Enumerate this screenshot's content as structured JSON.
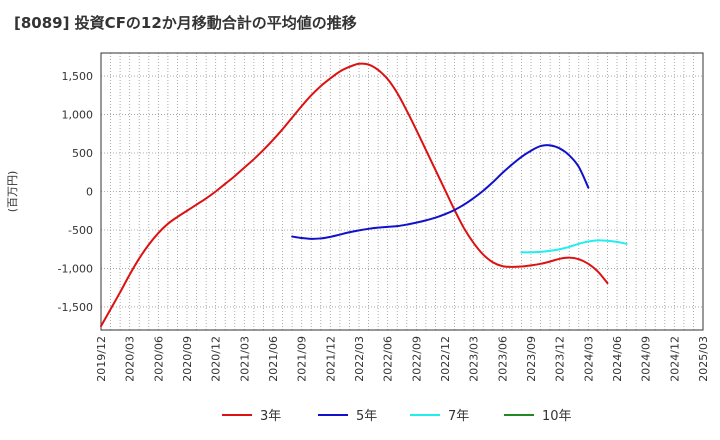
{
  "chart_data": {
    "type": "line",
    "title": "[8089]  投資CFの12か月移動合計の平均値の推移",
    "ylabel": "(百万円)",
    "xlabel": "",
    "ylim": [
      -1800,
      1800
    ],
    "yticks": [
      -1500,
      -1000,
      -500,
      0,
      500,
      1000,
      1500
    ],
    "ytick_labels": [
      "-1,500",
      "-1,000",
      "-500",
      "0",
      "500",
      "1,000",
      "1,500"
    ],
    "x_range": [
      "2019-12",
      "2025-03"
    ],
    "xtick_labels": [
      "2019/12",
      "2020/03",
      "2020/06",
      "2020/09",
      "2020/12",
      "2021/03",
      "2021/06",
      "2021/09",
      "2021/12",
      "2022/03",
      "2022/06",
      "2022/09",
      "2022/12",
      "2023/03",
      "2023/06",
      "2023/09",
      "2023/12",
      "2024/03",
      "2024/06",
      "2024/09",
      "2024/12",
      "2025/03"
    ],
    "grid": true,
    "legend_position": "bottom",
    "series": [
      {
        "name": "3年",
        "color": "#dd1111",
        "points": [
          [
            "2019-12",
            -1750
          ],
          [
            "2020-01",
            -1530
          ],
          [
            "2020-02",
            -1310
          ],
          [
            "2020-03",
            -1080
          ],
          [
            "2020-04",
            -870
          ],
          [
            "2020-05",
            -690
          ],
          [
            "2020-06",
            -540
          ],
          [
            "2020-07",
            -420
          ],
          [
            "2020-08",
            -330
          ],
          [
            "2020-09",
            -250
          ],
          [
            "2020-10",
            -170
          ],
          [
            "2020-11",
            -90
          ],
          [
            "2020-12",
            0
          ],
          [
            "2021-01",
            100
          ],
          [
            "2021-02",
            200
          ],
          [
            "2021-03",
            310
          ],
          [
            "2021-04",
            420
          ],
          [
            "2021-05",
            540
          ],
          [
            "2021-06",
            670
          ],
          [
            "2021-07",
            810
          ],
          [
            "2021-08",
            960
          ],
          [
            "2021-09",
            1110
          ],
          [
            "2021-10",
            1250
          ],
          [
            "2021-11",
            1370
          ],
          [
            "2021-12",
            1470
          ],
          [
            "2022-01",
            1560
          ],
          [
            "2022-02",
            1620
          ],
          [
            "2022-03",
            1660
          ],
          [
            "2022-04",
            1650
          ],
          [
            "2022-05",
            1580
          ],
          [
            "2022-06",
            1460
          ],
          [
            "2022-07",
            1280
          ],
          [
            "2022-08",
            1050
          ],
          [
            "2022-09",
            800
          ],
          [
            "2022-10",
            540
          ],
          [
            "2022-11",
            280
          ],
          [
            "2022-12",
            20
          ],
          [
            "2023-01",
            -240
          ],
          [
            "2023-02",
            -480
          ],
          [
            "2023-03",
            -670
          ],
          [
            "2023-04",
            -820
          ],
          [
            "2023-05",
            -920
          ],
          [
            "2023-06",
            -970
          ],
          [
            "2023-07",
            -980
          ],
          [
            "2023-08",
            -975
          ],
          [
            "2023-09",
            -960
          ],
          [
            "2023-10",
            -940
          ],
          [
            "2023-11",
            -910
          ],
          [
            "2023-12",
            -875
          ],
          [
            "2024-01",
            -860
          ],
          [
            "2024-02",
            -880
          ],
          [
            "2024-03",
            -940
          ],
          [
            "2024-04",
            -1040
          ],
          [
            "2024-05",
            -1190
          ]
        ]
      },
      {
        "name": "5年",
        "color": "#1111cc",
        "points": [
          [
            "2021-08",
            -585
          ],
          [
            "2021-09",
            -605
          ],
          [
            "2021-10",
            -615
          ],
          [
            "2021-11",
            -610
          ],
          [
            "2021-12",
            -590
          ],
          [
            "2022-01",
            -560
          ],
          [
            "2022-02",
            -530
          ],
          [
            "2022-03",
            -505
          ],
          [
            "2022-04",
            -485
          ],
          [
            "2022-05",
            -470
          ],
          [
            "2022-06",
            -460
          ],
          [
            "2022-07",
            -450
          ],
          [
            "2022-08",
            -430
          ],
          [
            "2022-09",
            -405
          ],
          [
            "2022-10",
            -375
          ],
          [
            "2022-11",
            -340
          ],
          [
            "2022-12",
            -295
          ],
          [
            "2023-01",
            -240
          ],
          [
            "2023-02",
            -170
          ],
          [
            "2023-03",
            -85
          ],
          [
            "2023-04",
            10
          ],
          [
            "2023-05",
            120
          ],
          [
            "2023-06",
            240
          ],
          [
            "2023-07",
            350
          ],
          [
            "2023-08",
            450
          ],
          [
            "2023-09",
            530
          ],
          [
            "2023-10",
            590
          ],
          [
            "2023-11",
            600
          ],
          [
            "2023-12",
            560
          ],
          [
            "2024-01",
            470
          ],
          [
            "2024-02",
            320
          ],
          [
            "2024-03",
            50
          ]
        ]
      },
      {
        "name": "7年",
        "color": "#22eeee",
        "points": [
          [
            "2023-08",
            -790
          ],
          [
            "2023-09",
            -790
          ],
          [
            "2023-10",
            -785
          ],
          [
            "2023-11",
            -770
          ],
          [
            "2023-12",
            -750
          ],
          [
            "2024-01",
            -720
          ],
          [
            "2024-02",
            -680
          ],
          [
            "2024-03",
            -650
          ],
          [
            "2024-04",
            -635
          ],
          [
            "2024-05",
            -640
          ],
          [
            "2024-06",
            -655
          ],
          [
            "2024-07",
            -680
          ]
        ]
      },
      {
        "name": "10年",
        "color": "#228822",
        "points": []
      }
    ]
  }
}
